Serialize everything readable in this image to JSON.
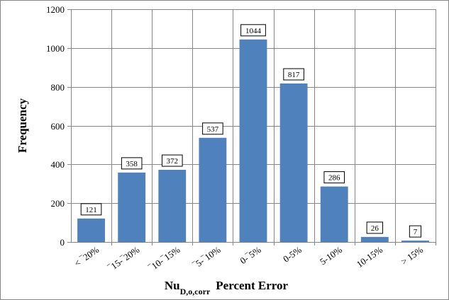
{
  "chart_data": {
    "type": "bar",
    "title": "",
    "xlabel": "Nu",
    "xlabel_subscript": "D,o,corr",
    "xlabel_suffix": "Percent Error",
    "ylabel": "Frequency",
    "ylim": [
      0,
      1200
    ],
    "yticks": [
      "0",
      "200",
      "400",
      "600",
      "800",
      "1000",
      "1200"
    ],
    "grid": true,
    "legend": "none",
    "bar_color": "#4f81bd",
    "categories": [
      "< ‾20%",
      "‾15-‾20%",
      "‾10-‾15%",
      "‾5-‾10%",
      "0-‾5%",
      "0-5%",
      "5-10%",
      "10-15%",
      "> 15%"
    ],
    "values": [
      121,
      358,
      372,
      537,
      1044,
      817,
      286,
      26,
      7
    ],
    "data_labels": [
      "121",
      "358",
      "372",
      "537",
      "1044",
      "817",
      "286",
      "26",
      "7"
    ]
  }
}
